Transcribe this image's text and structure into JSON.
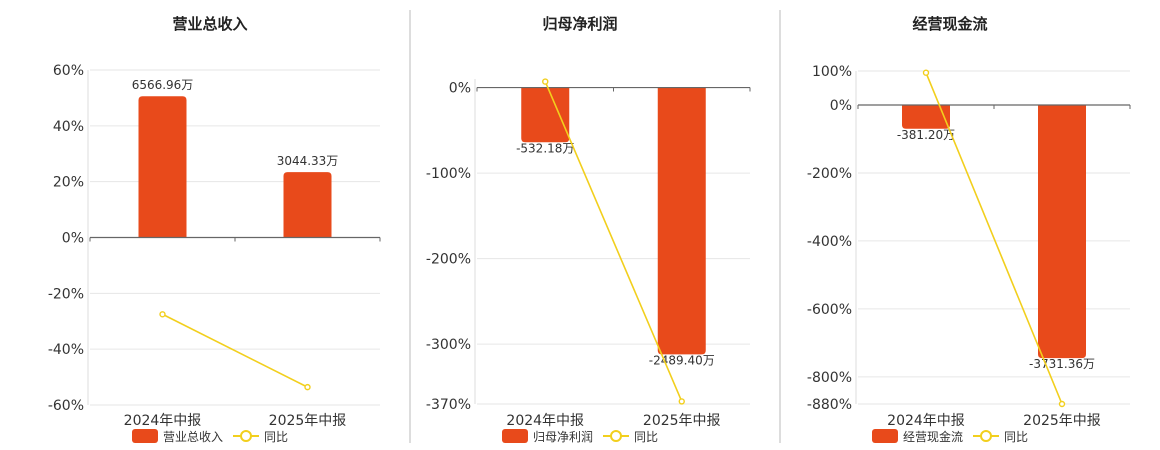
{
  "chart_data": [
    {
      "type": "bar",
      "title": "营业总收入",
      "categories": [
        "2024年中报",
        "2025年中报"
      ],
      "series": [
        {
          "name": "营业总收入",
          "type": "bar",
          "values": [
            50.6,
            23.4
          ],
          "labels": [
            "6566.96万",
            "3044.33万"
          ],
          "color": "#e84a1b"
        },
        {
          "name": "同比",
          "type": "line",
          "values": [
            -27.5,
            -53.6
          ],
          "color": "#f2cf1d"
        }
      ],
      "yticks": [
        60,
        40,
        20,
        0,
        -20,
        -40,
        -60
      ],
      "ytick_labels": [
        "60%",
        "40%",
        "20%",
        "0%",
        "-20%",
        "-40%",
        "-60%"
      ],
      "ylim": [
        -60,
        60
      ],
      "legend": [
        "营业总收入",
        "同比"
      ]
    },
    {
      "type": "bar",
      "title": "归母净利润",
      "categories": [
        "2024年中报",
        "2025年中报"
      ],
      "series": [
        {
          "name": "归母净利润",
          "type": "bar",
          "values": [
            -64,
            -312
          ],
          "labels": [
            "-532.18万",
            "-2489.40万"
          ],
          "color": "#e84a1b"
        },
        {
          "name": "同比",
          "type": "line",
          "values": [
            7,
            -367
          ],
          "color": "#f2cf1d"
        }
      ],
      "yticks": [
        0,
        -100,
        -200,
        -300,
        -370
      ],
      "ytick_labels": [
        "0%",
        "-100%",
        "-200%",
        "-300%",
        "-370%"
      ],
      "ylim": [
        -370,
        10
      ],
      "legend": [
        "归母净利润",
        "同比"
      ]
    },
    {
      "type": "bar",
      "title": "经营现金流",
      "categories": [
        "2024年中报",
        "2025年中报"
      ],
      "series": [
        {
          "name": "经营现金流",
          "type": "bar",
          "values": [
            -70,
            -745
          ],
          "labels": [
            "-381.20万",
            "-3731.36万"
          ],
          "color": "#e84a1b"
        },
        {
          "name": "同比",
          "type": "line",
          "values": [
            95,
            -880
          ],
          "color": "#f2cf1d"
        }
      ],
      "yticks": [
        100,
        0,
        -200,
        -400,
        -600,
        -800,
        -880
      ],
      "ytick_labels": [
        "100%",
        "0%",
        "-200%",
        "-400%",
        "-600%",
        "-800%",
        "-880%"
      ],
      "ylim": [
        -880,
        100
      ],
      "legend": [
        "经营现金流",
        "同比"
      ]
    }
  ]
}
